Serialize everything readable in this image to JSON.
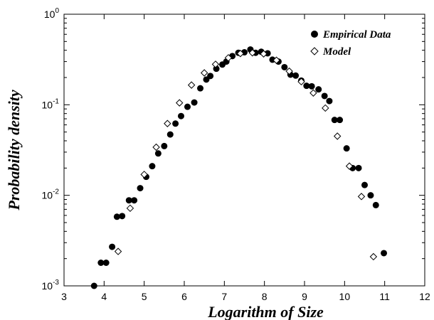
{
  "chart_data": {
    "type": "scatter",
    "xlabel": "Logarithm of Size",
    "ylabel": "Probability density",
    "xlim": [
      3,
      12
    ],
    "ylim": [
      0.001,
      1
    ],
    "yscale": "log",
    "xticks": [
      "3",
      "4",
      "5",
      "6",
      "7",
      "8",
      "9",
      "10",
      "11",
      "12"
    ],
    "yticks": [
      {
        "value": 0.001,
        "base": "10",
        "exp": "-3"
      },
      {
        "value": 0.01,
        "base": "10",
        "exp": "-2"
      },
      {
        "value": 0.1,
        "base": "10",
        "exp": "-1"
      },
      {
        "value": 1,
        "base": "10",
        "exp": "0"
      }
    ],
    "legend_position": "top-right",
    "series": [
      {
        "name": "Empirical Data",
        "marker": "filled-circle",
        "color": "#000000",
        "points": [
          [
            3.75,
            0.001
          ],
          [
            3.92,
            0.0018
          ],
          [
            4.05,
            0.0018
          ],
          [
            4.2,
            0.0027
          ],
          [
            4.32,
            0.0058
          ],
          [
            4.45,
            0.0059
          ],
          [
            4.62,
            0.0088
          ],
          [
            4.75,
            0.0088
          ],
          [
            4.9,
            0.012
          ],
          [
            5.05,
            0.016
          ],
          [
            5.2,
            0.021
          ],
          [
            5.35,
            0.029
          ],
          [
            5.5,
            0.035
          ],
          [
            5.65,
            0.047
          ],
          [
            5.78,
            0.062
          ],
          [
            5.92,
            0.075
          ],
          [
            6.08,
            0.095
          ],
          [
            6.25,
            0.106
          ],
          [
            6.4,
            0.152
          ],
          [
            6.55,
            0.19
          ],
          [
            6.65,
            0.208
          ],
          [
            6.8,
            0.25
          ],
          [
            6.95,
            0.278
          ],
          [
            7.05,
            0.3
          ],
          [
            7.2,
            0.345
          ],
          [
            7.35,
            0.375
          ],
          [
            7.5,
            0.38
          ],
          [
            7.65,
            0.408
          ],
          [
            7.78,
            0.375
          ],
          [
            7.92,
            0.385
          ],
          [
            8.08,
            0.37
          ],
          [
            8.2,
            0.315
          ],
          [
            8.35,
            0.3
          ],
          [
            8.5,
            0.26
          ],
          [
            8.65,
            0.215
          ],
          [
            8.78,
            0.21
          ],
          [
            8.92,
            0.185
          ],
          [
            9.05,
            0.162
          ],
          [
            9.18,
            0.16
          ],
          [
            9.35,
            0.148
          ],
          [
            9.5,
            0.125
          ],
          [
            9.62,
            0.11
          ],
          [
            9.75,
            0.068
          ],
          [
            9.88,
            0.068
          ],
          [
            10.05,
            0.033
          ],
          [
            10.2,
            0.02
          ],
          [
            10.35,
            0.02
          ],
          [
            10.5,
            0.013
          ],
          [
            10.65,
            0.01
          ],
          [
            10.78,
            0.0078
          ],
          [
            10.98,
            0.0023
          ]
        ]
      },
      {
        "name": "Model",
        "marker": "open-diamond",
        "color": "#000000",
        "points": [
          [
            4.35,
            0.0024
          ],
          [
            4.65,
            0.0072
          ],
          [
            5.0,
            0.017
          ],
          [
            5.3,
            0.034
          ],
          [
            5.58,
            0.062
          ],
          [
            5.88,
            0.105
          ],
          [
            6.18,
            0.165
          ],
          [
            6.5,
            0.225
          ],
          [
            6.78,
            0.28
          ],
          [
            7.1,
            0.33
          ],
          [
            7.4,
            0.368
          ],
          [
            7.7,
            0.375
          ],
          [
            7.98,
            0.365
          ],
          [
            8.3,
            0.31
          ],
          [
            8.62,
            0.235
          ],
          [
            8.92,
            0.18
          ],
          [
            9.22,
            0.135
          ],
          [
            9.52,
            0.092
          ],
          [
            9.82,
            0.045
          ],
          [
            10.12,
            0.021
          ],
          [
            10.42,
            0.0097
          ],
          [
            10.72,
            0.0021
          ]
        ]
      }
    ]
  }
}
